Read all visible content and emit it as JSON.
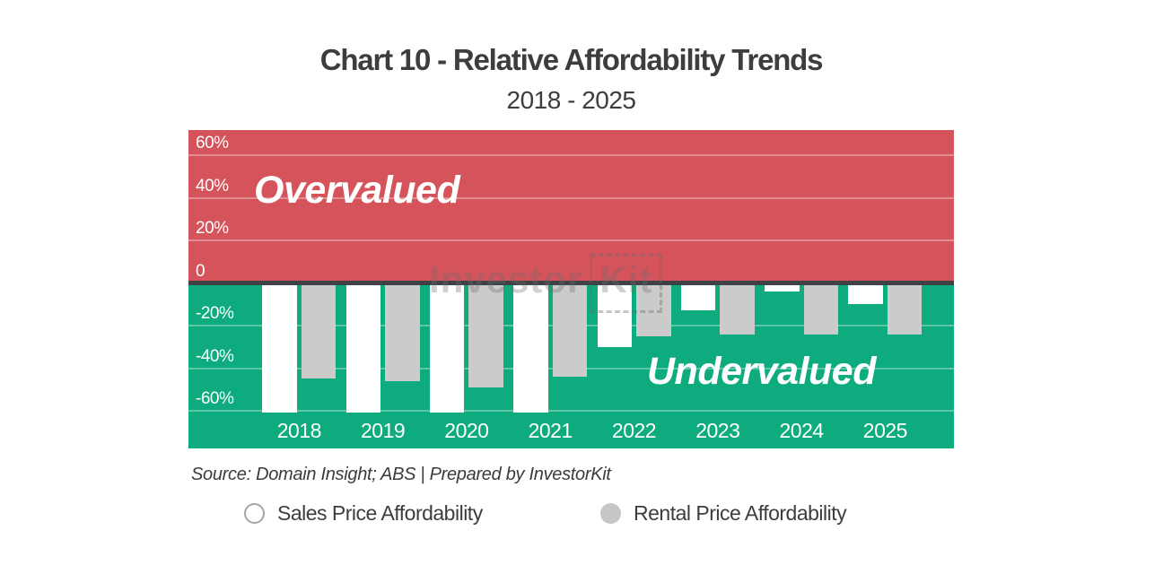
{
  "title": "Chart 10 - Relative Affordability Trends",
  "subtitle": "2018 - 2025",
  "source": "Source: Domain Insight; ABS | Prepared by InvestorKit",
  "zones": {
    "overvalued": "Overvalued",
    "undervalued": "Undervalued"
  },
  "watermark": {
    "part1": "Investor",
    "part2": "Kit"
  },
  "legend": {
    "items": [
      {
        "label": "Sales Price Affordability",
        "swatch": "white-outlined-circle"
      },
      {
        "label": "Rental Price Affordability",
        "swatch": "gray-filled-circle"
      }
    ]
  },
  "colors": {
    "overvalued_zone": "#d5535a",
    "undervalued_zone": "#0dab7d",
    "sales_bar": "#ffffff",
    "rental_bar": "#cbcbcb",
    "zero_line": "#404145",
    "axis_text": "#ffffff",
    "dark_text": "#3d3d3d",
    "legend_sales_border": "#a6a6a6",
    "legend_rental_fill": "#c6c6c6"
  },
  "chart_data": {
    "type": "bar",
    "title": "Chart 10 - Relative Affordability Trends",
    "subtitle": "2018 - 2025",
    "categories": [
      "2018",
      "2019",
      "2020",
      "2021",
      "2022",
      "2023",
      "2024",
      "2025"
    ],
    "series": [
      {
        "name": "Sales Price Affordability",
        "color": "#ffffff",
        "values": [
          -61,
          -61,
          -61,
          -61,
          -30,
          -13,
          -4,
          -10
        ]
      },
      {
        "name": "Rental Price Affordability",
        "color": "#cbcbcb",
        "values": [
          -45,
          -46,
          -49,
          -44,
          -25,
          -24,
          -24,
          -24
        ]
      }
    ],
    "xlabel": "",
    "ylabel": "",
    "y_ticks": [
      "60%",
      "40%",
      "20%",
      "0",
      "-20%",
      "-40%",
      "-60%"
    ],
    "y_tick_values": [
      60,
      40,
      20,
      0,
      -20,
      -40,
      -60
    ],
    "ylim": [
      -61,
      72
    ],
    "grid": true,
    "zero_baseline": true,
    "legend_position": "bottom",
    "annotations": [
      "Overvalued",
      "Undervalued"
    ],
    "note": "Sales bars for 2018-2021 reach the bottom of the plot area (clipped at the axis floor just past -60%)"
  }
}
